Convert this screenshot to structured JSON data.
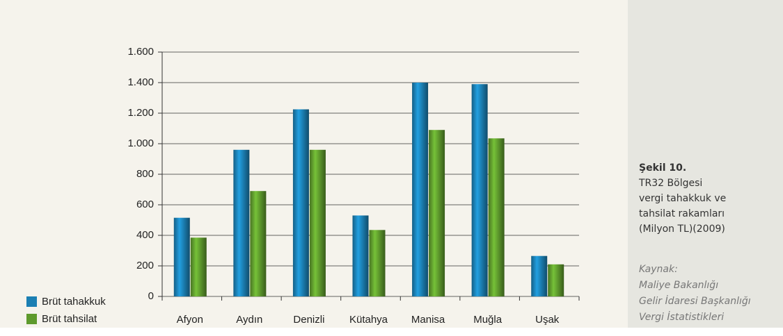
{
  "chart_data": {
    "type": "bar",
    "categories": [
      "Afyon",
      "Aydın",
      "Denizli",
      "Kütahya",
      "Manisa",
      "Muğla",
      "Uşak"
    ],
    "series": [
      {
        "name": "Brüt tahakkuk",
        "color": "#1b7fb3",
        "values": [
          515,
          960,
          1225,
          530,
          1400,
          1390,
          265
        ]
      },
      {
        "name": "Brüt tahsilat",
        "color": "#5e9a2d",
        "values": [
          385,
          690,
          960,
          435,
          1090,
          1035,
          210
        ]
      }
    ],
    "ylim": [
      0,
      1600
    ],
    "yticks": [
      0,
      200,
      400,
      600,
      800,
      {
        "value": 1000,
        "label": "1.000"
      },
      {
        "value": 1200,
        "label": "1.200"
      },
      {
        "value": 1400,
        "label": "1.400"
      },
      {
        "value": 1600,
        "label": "1.600"
      }
    ],
    "grid": true,
    "legend": "bottom-left"
  },
  "caption": {
    "label": "Şekil 10.",
    "lines": [
      "TR32 Bölgesi",
      "vergi tahakkuk ve",
      "tahsilat rakamları",
      "(Milyon TL)(2009)"
    ]
  },
  "source": {
    "lines": [
      "Kaynak:",
      "Maliye Bakanlığı",
      "Gelir İdaresi Başkanlığı",
      "Vergi İstatistikleri"
    ]
  }
}
